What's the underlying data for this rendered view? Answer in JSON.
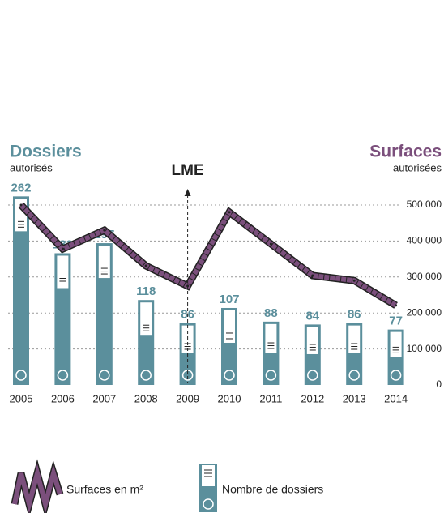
{
  "chart_data": {
    "type": "bar-line",
    "y_label": {
      "title": "Dossiers",
      "subtitle": "autorisés"
    },
    "y2_label": {
      "title": "Surfaces",
      "subtitle": "autorisées"
    },
    "annotation": {
      "text": "LME",
      "at": "2009"
    },
    "categories": [
      "2005",
      "2006",
      "2007",
      "2008",
      "2009",
      "2010",
      "2011",
      "2012",
      "2013",
      "2014"
    ],
    "series": [
      {
        "name": "Nombre de dossiers",
        "color": "#5b8f9c",
        "type": "bar",
        "values": [
          262,
          183,
          197,
          118,
          86,
          107,
          88,
          84,
          86,
          77
        ]
      },
      {
        "name": "Surfaces en m²",
        "color": "#7b4f7c",
        "type": "line",
        "axis": "y2",
        "values": [
          500000,
          378000,
          430000,
          331000,
          275000,
          480000,
          392000,
          304000,
          290000,
          221000
        ]
      }
    ],
    "ylim": [
      0,
      250
    ],
    "y2lim": [
      0,
      500000
    ],
    "y2ticks": [
      0,
      {
        "value": 100000,
        "label": "100 000"
      },
      {
        "value": 200000,
        "label": "200 000"
      },
      {
        "value": 300000,
        "label": "300 000"
      },
      {
        "value": 400000,
        "label": "400 000"
      },
      {
        "value": 500000,
        "label": "500 000"
      }
    ],
    "grid": true
  }
}
